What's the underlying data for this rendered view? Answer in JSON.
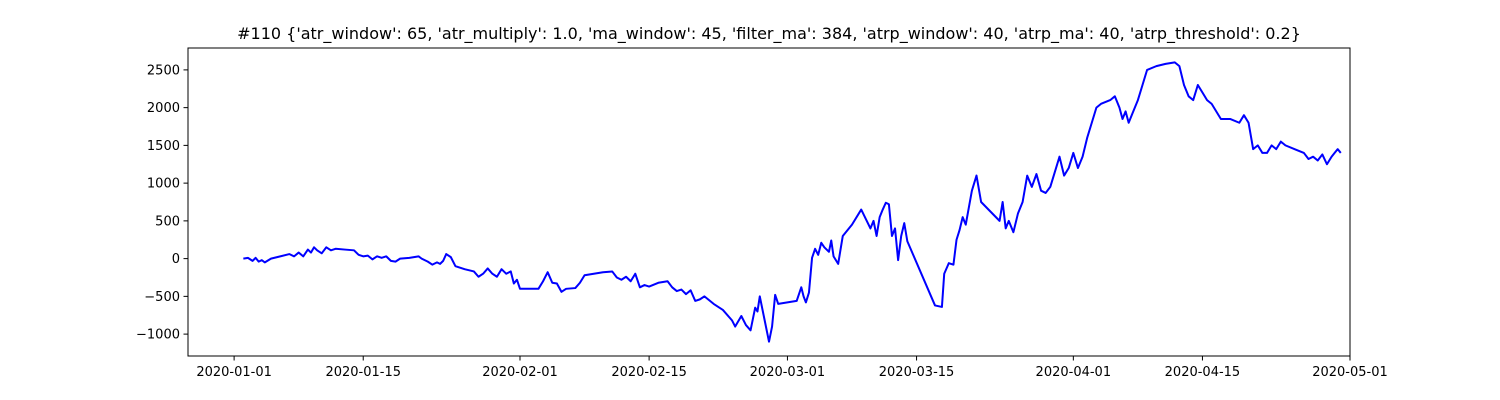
{
  "chart_data": {
    "type": "line",
    "title": "#110 {'atr_window': 65, 'atr_multiply': 1.0, 'ma_window': 45, 'filter_ma': 384, 'atrp_window': 40, 'atrp_ma': 40, 'atrp_threshold': 0.2}",
    "xlabel": "",
    "ylabel": "",
    "x_axis_type": "date",
    "xlim": [
      "2019-12-27",
      "2020-05-01"
    ],
    "ylim": [
      -1290,
      2790
    ],
    "x_ticks": [
      "2020-01-01",
      "2020-01-15",
      "2020-02-01",
      "2020-02-15",
      "2020-03-01",
      "2020-03-15",
      "2020-04-01",
      "2020-04-15",
      "2020-05-01"
    ],
    "y_ticks": [
      -1000,
      -500,
      0,
      500,
      1000,
      1500,
      2000,
      2500
    ],
    "grid": false,
    "legend": false,
    "series": [
      {
        "color": "#0000ff",
        "points": [
          [
            "2020-01-02",
            0
          ],
          [
            "2020-01-02 12:00",
            10
          ],
          [
            "2020-01-03",
            -30
          ],
          [
            "2020-01-03 08:00",
            10
          ],
          [
            "2020-01-03 16:00",
            -40
          ],
          [
            "2020-01-04",
            -20
          ],
          [
            "2020-01-04 08:00",
            -50
          ],
          [
            "2020-01-05",
            0
          ],
          [
            "2020-01-06",
            30
          ],
          [
            "2020-01-07",
            60
          ],
          [
            "2020-01-07 12:00",
            30
          ],
          [
            "2020-01-08",
            80
          ],
          [
            "2020-01-08 12:00",
            30
          ],
          [
            "2020-01-09",
            120
          ],
          [
            "2020-01-09 08:00",
            80
          ],
          [
            "2020-01-09 16:00",
            150
          ],
          [
            "2020-01-10",
            110
          ],
          [
            "2020-01-10 12:00",
            70
          ],
          [
            "2020-01-11",
            150
          ],
          [
            "2020-01-11 12:00",
            110
          ],
          [
            "2020-01-12",
            130
          ],
          [
            "2020-01-13",
            120
          ],
          [
            "2020-01-14",
            110
          ],
          [
            "2020-01-14 12:00",
            50
          ],
          [
            "2020-01-15",
            30
          ],
          [
            "2020-01-15 12:00",
            40
          ],
          [
            "2020-01-16",
            -10
          ],
          [
            "2020-01-16 12:00",
            30
          ],
          [
            "2020-01-17",
            10
          ],
          [
            "2020-01-17 12:00",
            30
          ],
          [
            "2020-01-18",
            -30
          ],
          [
            "2020-01-18 12:00",
            -40
          ],
          [
            "2020-01-19",
            0
          ],
          [
            "2020-01-20",
            10
          ],
          [
            "2020-01-21",
            30
          ],
          [
            "2020-01-21 08:00",
            0
          ],
          [
            "2020-01-22",
            -40
          ],
          [
            "2020-01-22 12:00",
            -80
          ],
          [
            "2020-01-23",
            -50
          ],
          [
            "2020-01-23 08:00",
            -70
          ],
          [
            "2020-01-23 16:00",
            -30
          ],
          [
            "2020-01-24",
            60
          ],
          [
            "2020-01-24 12:00",
            20
          ],
          [
            "2020-01-25",
            -100
          ],
          [
            "2020-01-26",
            -140
          ],
          [
            "2020-01-27",
            -170
          ],
          [
            "2020-01-27 12:00",
            -240
          ],
          [
            "2020-01-28",
            -200
          ],
          [
            "2020-01-28 12:00",
            -130
          ],
          [
            "2020-01-29",
            -200
          ],
          [
            "2020-01-29 12:00",
            -240
          ],
          [
            "2020-01-30",
            -140
          ],
          [
            "2020-01-30 12:00",
            -200
          ],
          [
            "2020-01-31",
            -170
          ],
          [
            "2020-01-31 08:00",
            -330
          ],
          [
            "2020-01-31 16:00",
            -280
          ],
          [
            "2020-02-01",
            -400
          ],
          [
            "2020-02-02",
            -400
          ],
          [
            "2020-02-03",
            -400
          ],
          [
            "2020-02-03 12:00",
            -300
          ],
          [
            "2020-02-04",
            -180
          ],
          [
            "2020-02-04 12:00",
            -320
          ],
          [
            "2020-02-05",
            -330
          ],
          [
            "2020-02-05 12:00",
            -440
          ],
          [
            "2020-02-06",
            -400
          ],
          [
            "2020-02-07",
            -390
          ],
          [
            "2020-02-07 12:00",
            -320
          ],
          [
            "2020-02-08",
            -220
          ],
          [
            "2020-02-09",
            -200
          ],
          [
            "2020-02-10",
            -180
          ],
          [
            "2020-02-11",
            -170
          ],
          [
            "2020-02-11 12:00",
            -250
          ],
          [
            "2020-02-12",
            -280
          ],
          [
            "2020-02-12 12:00",
            -240
          ],
          [
            "2020-02-13",
            -300
          ],
          [
            "2020-02-13 12:00",
            -200
          ],
          [
            "2020-02-14",
            -380
          ],
          [
            "2020-02-14 12:00",
            -350
          ],
          [
            "2020-02-15",
            -370
          ],
          [
            "2020-02-16",
            -320
          ],
          [
            "2020-02-17",
            -300
          ],
          [
            "2020-02-17 12:00",
            -380
          ],
          [
            "2020-02-18",
            -430
          ],
          [
            "2020-02-18 12:00",
            -410
          ],
          [
            "2020-02-19",
            -470
          ],
          [
            "2020-02-19 12:00",
            -420
          ],
          [
            "2020-02-20",
            -560
          ],
          [
            "2020-02-20 12:00",
            -540
          ],
          [
            "2020-02-21",
            -500
          ],
          [
            "2020-02-22",
            -600
          ],
          [
            "2020-02-23",
            -680
          ],
          [
            "2020-02-24",
            -820
          ],
          [
            "2020-02-24 08:00",
            -900
          ],
          [
            "2020-02-25",
            -760
          ],
          [
            "2020-02-25 12:00",
            -880
          ],
          [
            "2020-02-26",
            -950
          ],
          [
            "2020-02-26 12:00",
            -650
          ],
          [
            "2020-02-26 18:00",
            -700
          ],
          [
            "2020-02-27",
            -500
          ],
          [
            "2020-02-27 12:00",
            -800
          ],
          [
            "2020-02-28",
            -1100
          ],
          [
            "2020-02-28 08:00",
            -900
          ],
          [
            "2020-02-28 16:00",
            -480
          ],
          [
            "2020-02-29",
            -600
          ],
          [
            "2020-03-01",
            -580
          ],
          [
            "2020-03-02",
            -560
          ],
          [
            "2020-03-02 12:00",
            -380
          ],
          [
            "2020-03-02 18:00",
            -500
          ],
          [
            "2020-03-03",
            -580
          ],
          [
            "2020-03-03 08:00",
            -450
          ],
          [
            "2020-03-03 16:00",
            10
          ],
          [
            "2020-03-04",
            130
          ],
          [
            "2020-03-04 08:00",
            50
          ],
          [
            "2020-03-04 16:00",
            210
          ],
          [
            "2020-03-05",
            150
          ],
          [
            "2020-03-05 12:00",
            90
          ],
          [
            "2020-03-05 18:00",
            240
          ],
          [
            "2020-03-06",
            30
          ],
          [
            "2020-03-06 12:00",
            -70
          ],
          [
            "2020-03-07",
            300
          ],
          [
            "2020-03-08",
            450
          ],
          [
            "2020-03-09",
            650
          ],
          [
            "2020-03-10",
            400
          ],
          [
            "2020-03-10 08:00",
            500
          ],
          [
            "2020-03-10 16:00",
            300
          ],
          [
            "2020-03-11",
            550
          ],
          [
            "2020-03-11 08:00",
            650
          ],
          [
            "2020-03-11 16:00",
            740
          ],
          [
            "2020-03-12",
            720
          ],
          [
            "2020-03-12 08:00",
            300
          ],
          [
            "2020-03-12 16:00",
            400
          ],
          [
            "2020-03-13",
            -20
          ],
          [
            "2020-03-13 08:00",
            300
          ],
          [
            "2020-03-13 16:00",
            470
          ],
          [
            "2020-03-14",
            230
          ],
          [
            "2020-03-17",
            -620
          ],
          [
            "2020-03-17 18:00",
            -640
          ],
          [
            "2020-03-18",
            -200
          ],
          [
            "2020-03-18 12:00",
            -60
          ],
          [
            "2020-03-19",
            -80
          ],
          [
            "2020-03-19 08:00",
            250
          ],
          [
            "2020-03-19 16:00",
            380
          ],
          [
            "2020-03-20",
            550
          ],
          [
            "2020-03-20 08:00",
            450
          ],
          [
            "2020-03-21",
            900
          ],
          [
            "2020-03-21 12:00",
            1100
          ],
          [
            "2020-03-22",
            750
          ],
          [
            "2020-03-24",
            500
          ],
          [
            "2020-03-24 08:00",
            750
          ],
          [
            "2020-03-24 16:00",
            400
          ],
          [
            "2020-03-25",
            500
          ],
          [
            "2020-03-25 12:00",
            350
          ],
          [
            "2020-03-26",
            600
          ],
          [
            "2020-03-26 12:00",
            750
          ],
          [
            "2020-03-27",
            1100
          ],
          [
            "2020-03-27 12:00",
            950
          ],
          [
            "2020-03-28",
            1120
          ],
          [
            "2020-03-28 12:00",
            900
          ],
          [
            "2020-03-29",
            870
          ],
          [
            "2020-03-29 12:00",
            950
          ],
          [
            "2020-03-30",
            1150
          ],
          [
            "2020-03-30 12:00",
            1350
          ],
          [
            "2020-03-31",
            1100
          ],
          [
            "2020-03-31 12:00",
            1200
          ],
          [
            "2020-04-01",
            1400
          ],
          [
            "2020-04-01 12:00",
            1200
          ],
          [
            "2020-04-02",
            1350
          ],
          [
            "2020-04-02 12:00",
            1600
          ],
          [
            "2020-04-03",
            1800
          ],
          [
            "2020-04-03 12:00",
            2000
          ],
          [
            "2020-04-04",
            2050
          ],
          [
            "2020-04-05",
            2100
          ],
          [
            "2020-04-05 12:00",
            2150
          ],
          [
            "2020-04-06",
            2000
          ],
          [
            "2020-04-06 08:00",
            1850
          ],
          [
            "2020-04-06 16:00",
            1950
          ],
          [
            "2020-04-07",
            1800
          ],
          [
            "2020-04-07 12:00",
            1950
          ],
          [
            "2020-04-08",
            2100
          ],
          [
            "2020-04-08 12:00",
            2300
          ],
          [
            "2020-04-09",
            2500
          ],
          [
            "2020-04-10",
            2550
          ],
          [
            "2020-04-11",
            2580
          ],
          [
            "2020-04-12",
            2600
          ],
          [
            "2020-04-12 12:00",
            2550
          ],
          [
            "2020-04-13",
            2300
          ],
          [
            "2020-04-13 12:00",
            2150
          ],
          [
            "2020-04-14",
            2100
          ],
          [
            "2020-04-14 12:00",
            2300
          ],
          [
            "2020-04-15",
            2200
          ],
          [
            "2020-04-15 12:00",
            2100
          ],
          [
            "2020-04-16",
            2050
          ],
          [
            "2020-04-17",
            1850
          ],
          [
            "2020-04-18",
            1850
          ],
          [
            "2020-04-19",
            1800
          ],
          [
            "2020-04-19 12:00",
            1900
          ],
          [
            "2020-04-20",
            1800
          ],
          [
            "2020-04-20 12:00",
            1450
          ],
          [
            "2020-04-21",
            1500
          ],
          [
            "2020-04-21 12:00",
            1400
          ],
          [
            "2020-04-22",
            1400
          ],
          [
            "2020-04-22 12:00",
            1500
          ],
          [
            "2020-04-23",
            1450
          ],
          [
            "2020-04-23 12:00",
            1550
          ],
          [
            "2020-04-24",
            1500
          ],
          [
            "2020-04-25",
            1450
          ],
          [
            "2020-04-26",
            1400
          ],
          [
            "2020-04-26 12:00",
            1320
          ],
          [
            "2020-04-27",
            1350
          ],
          [
            "2020-04-27 12:00",
            1300
          ],
          [
            "2020-04-28",
            1380
          ],
          [
            "2020-04-28 12:00",
            1250
          ],
          [
            "2020-04-29",
            1350
          ],
          [
            "2020-04-29 08:00",
            1400
          ],
          [
            "2020-04-29 16:00",
            1450
          ],
          [
            "2020-04-30",
            1400
          ]
        ]
      }
    ]
  }
}
